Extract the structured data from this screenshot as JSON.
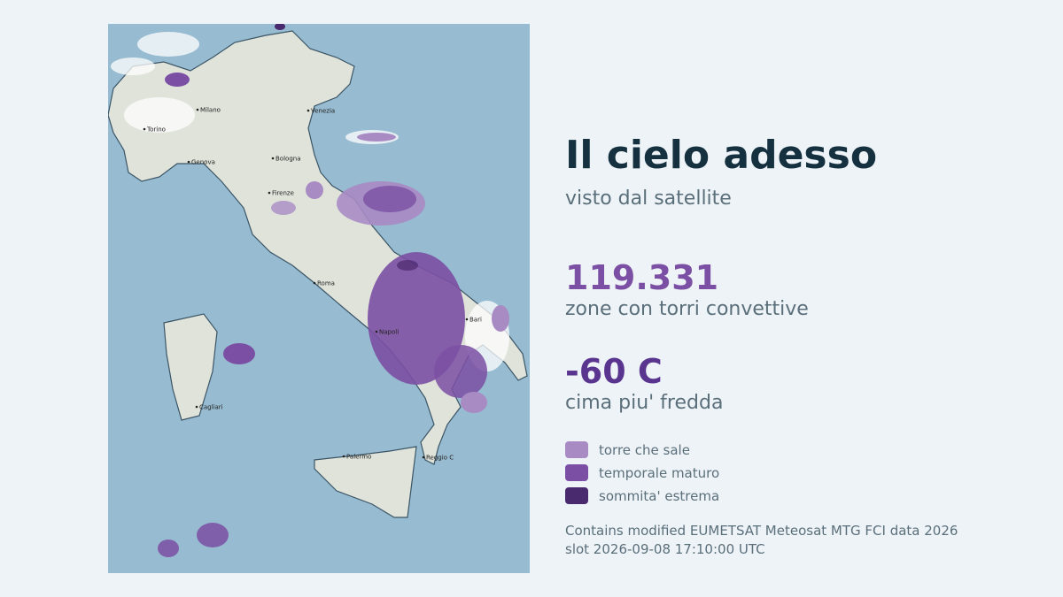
{
  "header": {
    "title": "Il cielo adesso",
    "subtitle": "visto dal satellite"
  },
  "stats": [
    {
      "value": "119.331",
      "label": "zone con torri convettive",
      "color": "#7b4fa3"
    },
    {
      "value": "-60 C",
      "label": "cima piu' fredda",
      "color": "#5a3590"
    }
  ],
  "legend": [
    {
      "label": "torre che sale",
      "color": "#a98bc4"
    },
    {
      "label": "temporale maturo",
      "color": "#7b4fa3"
    },
    {
      "label": "sommita' estrema",
      "color": "#4a2a6e"
    }
  ],
  "credits": [
    "Contains modified EUMETSAT Meteosat MTG FCI data 2026",
    "slot 2026-09-08 17:10:00 UTC"
  ],
  "map": {
    "cities": [
      "Milano",
      "Torino",
      "Genova",
      "Venezia",
      "Bologna",
      "Firenze",
      "Roma",
      "Napoli",
      "Bari",
      "Cagliari",
      "Palermo",
      "Reggio C"
    ]
  }
}
